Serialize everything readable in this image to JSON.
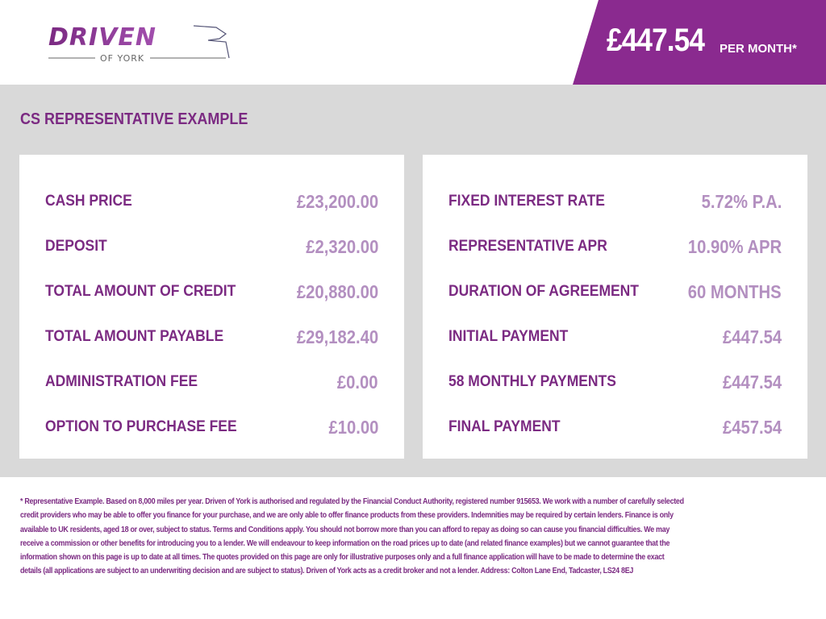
{
  "brand": {
    "name": "DRIVEN",
    "subtitle": "OF YORK",
    "color": "#7b2a82"
  },
  "header": {
    "monthly_price": "£447.54",
    "per_month_label": "PER MONTH*",
    "band_color": "#8a2a8f"
  },
  "section_title": "CS REPRESENTATIVE EXAMPLE",
  "left_items": [
    {
      "label": "CASH PRICE",
      "value": "£23,200.00"
    },
    {
      "label": "DEPOSIT",
      "value": "£2,320.00"
    },
    {
      "label": "TOTAL AMOUNT OF CREDIT",
      "value": "£20,880.00"
    },
    {
      "label": "TOTAL AMOUNT PAYABLE",
      "value": "£29,182.40"
    },
    {
      "label": "ADMINISTRATION FEE",
      "value": "£0.00"
    },
    {
      "label": "OPTION TO PURCHASE FEE",
      "value": "£10.00"
    }
  ],
  "right_items": [
    {
      "label": "FIXED INTEREST RATE",
      "value": "5.72% P.A."
    },
    {
      "label": "REPRESENTATIVE APR",
      "value": "10.90% APR"
    },
    {
      "label": "DURATION OF AGREEMENT",
      "value": "60 MONTHS"
    },
    {
      "label": "INITIAL PAYMENT",
      "value": "£447.54"
    },
    {
      "label": "58 MONTHLY PAYMENTS",
      "value": "£447.54"
    },
    {
      "label": "FINAL PAYMENT",
      "value": "£457.54"
    }
  ],
  "disclaimer_lines": [
    "* Representative Example. Based on 8,000 miles per year. Driven of York is authorised and regulated by the Financial Conduct Authority, registered number 915653. We work with a number of carefully selected",
    "credit providers who may be able to offer you finance for your purchase, and we are only able to offer finance products from these providers. Indemnities may be required by certain lenders. Finance is only",
    "available to UK residents, aged 18 or over, subject to status. Terms and Conditions apply. You should not borrow more than you can afford to repay as doing so can cause you financial difficulties. We may",
    "receive a commission or other benefits for introducing you to a lender. We will endeavour to keep information on the road prices up to date (and related finance examples) but we cannot guarantee that the",
    "information shown on this page is up to date at all times. The quotes provided on this page are only for illustrative purposes only and a full finance application will have to be made to determine the exact",
    "details (all applications are subject to an underwriting decision and are subject to status). Driven of York acts as a credit broker and not a lender. Address: Colton Lane End, Tadcaster, LS24 8EJ"
  ]
}
